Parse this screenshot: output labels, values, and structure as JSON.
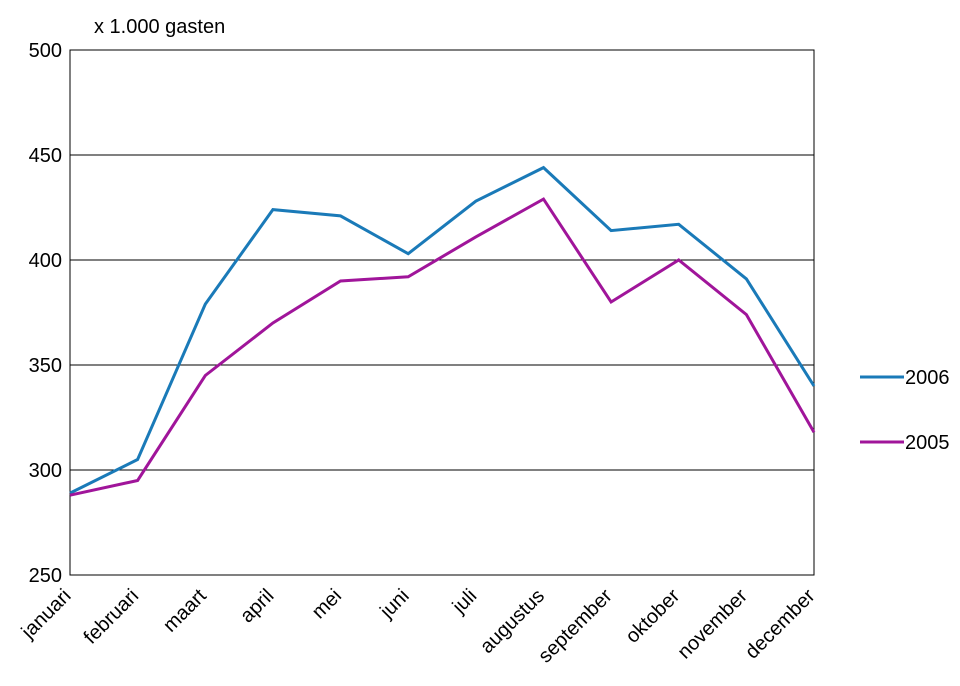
{
  "chart_data": {
    "type": "line",
    "title": "",
    "unit_label": "x 1.000 gasten",
    "xlabel": "",
    "ylabel": "",
    "categories": [
      "januari",
      "februari",
      "maart",
      "april",
      "mei",
      "juni",
      "juli",
      "augustus",
      "september",
      "oktober",
      "november",
      "december"
    ],
    "ylim": [
      250,
      500
    ],
    "yticks": [
      250,
      300,
      350,
      400,
      450,
      500
    ],
    "ytick_labels": [
      "250",
      "300",
      "350",
      "400",
      "450",
      "500"
    ],
    "grid": true,
    "legend_position": "right",
    "series": [
      {
        "name": "2006",
        "color": "#1a7ab8",
        "values": [
          289,
          305,
          379,
          424,
          421,
          403,
          428,
          444,
          414,
          417,
          391,
          340
        ]
      },
      {
        "name": "2005",
        "color": "#a0159a",
        "values": [
          288,
          295,
          345,
          370,
          390,
          392,
          411,
          429,
          380,
          400,
          374,
          318
        ]
      }
    ]
  }
}
